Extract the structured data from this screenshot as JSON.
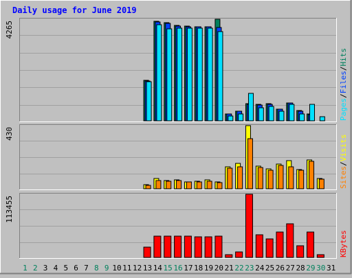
{
  "chart_data": {
    "title": "Daily usage for June 2019",
    "title_color": "#0000ff",
    "day_labels": [
      "1",
      "2",
      "3",
      "4",
      "5",
      "6",
      "7",
      "8",
      "9",
      "10",
      "11",
      "12",
      "13",
      "14",
      "15",
      "16",
      "17",
      "18",
      "19",
      "20",
      "21",
      "22",
      "23",
      "24",
      "25",
      "26",
      "27",
      "28",
      "29",
      "30",
      "31"
    ],
    "weekend_days": [
      1,
      2,
      8,
      9,
      15,
      16,
      22,
      23,
      29,
      30
    ],
    "colors": {
      "background": "#c0c0c0",
      "plot": "#c0c0c0",
      "grid": "#a0a0a0",
      "hits": "#00805c",
      "files": "#0040ff",
      "pages": "#00e0ff",
      "visits": "#ffff00",
      "sites": "#ff8000",
      "kbytes": "#ff0000",
      "weekday_label": "#000000",
      "weekend_label": "#00805c",
      "slash": "#000000"
    },
    "panels": [
      {
        "type": "bar",
        "max_label": "4265",
        "ymax": 4265,
        "legend": [
          "Pages",
          "Files",
          "Hits"
        ],
        "series": [
          {
            "name": "Hits",
            "values": [
              0,
              0,
              0,
              0,
              0,
              0,
              0,
              0,
              0,
              0,
              0,
              0,
              1700,
              4180,
              4120,
              4000,
              3980,
              3960,
              3960,
              4265,
              300,
              400,
              720,
              690,
              720,
              500,
              750,
              420,
              280,
              0,
              0
            ]
          },
          {
            "name": "Files",
            "values": [
              0,
              0,
              0,
              0,
              0,
              0,
              0,
              0,
              0,
              0,
              0,
              0,
              1680,
              4140,
              4100,
              3980,
              3960,
              3940,
              3940,
              3920,
              290,
              390,
              700,
              670,
              700,
              480,
              740,
              410,
              270,
              0,
              0
            ]
          },
          {
            "name": "Pages",
            "values": [
              0,
              0,
              0,
              0,
              0,
              0,
              0,
              0,
              0,
              0,
              0,
              0,
              1640,
              4040,
              3850,
              3880,
              3900,
              3880,
              3900,
              3740,
              200,
              300,
              1150,
              560,
              600,
              400,
              680,
              300,
              680,
              170,
              0
            ]
          }
        ]
      },
      {
        "type": "bar",
        "max_label": "430",
        "ymax": 430,
        "legend": [
          "Sites",
          "Visits"
        ],
        "series": [
          {
            "name": "Visits",
            "values": [
              0,
              0,
              0,
              0,
              0,
              0,
              0,
              0,
              0,
              0,
              0,
              0,
              30,
              70,
              55,
              60,
              45,
              50,
              60,
              45,
              150,
              175,
              430,
              155,
              135,
              170,
              190,
              130,
              195,
              70,
              0
            ]
          },
          {
            "name": "Sites",
            "values": [
              0,
              0,
              0,
              0,
              0,
              0,
              0,
              0,
              0,
              0,
              0,
              0,
              25,
              55,
              50,
              55,
              45,
              45,
              50,
              40,
              140,
              150,
              340,
              145,
              125,
              160,
              150,
              125,
              185,
              65,
              0
            ]
          }
        ]
      },
      {
        "type": "bar",
        "max_label": "113455",
        "ymax": 113455,
        "legend": [
          "KBytes"
        ],
        "series": [
          {
            "name": "KBytes",
            "values": [
              0,
              0,
              0,
              0,
              0,
              0,
              0,
              0,
              0,
              0,
              0,
              0,
              18000,
              38000,
              38000,
              38000,
              38000,
              37000,
              37000,
              38000,
              5000,
              10000,
              113455,
              41000,
              33000,
              46000,
              60000,
              21000,
              46000,
              4500,
              0
            ]
          }
        ]
      }
    ]
  }
}
